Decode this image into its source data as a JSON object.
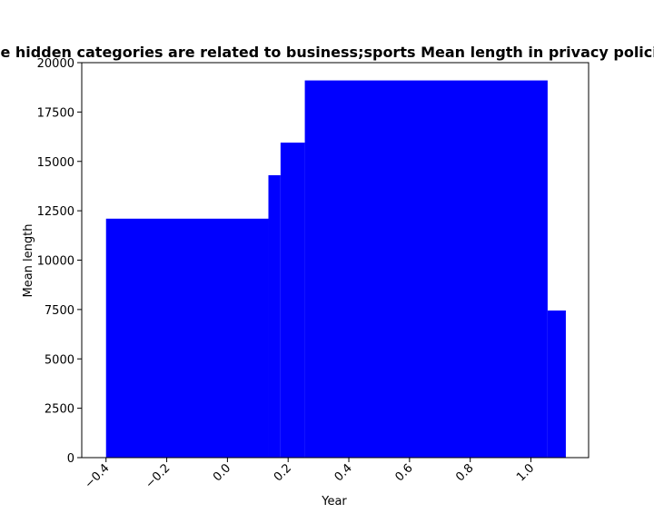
{
  "chart_data": {
    "type": "bar",
    "title": "Sites whose hidden categories are related to business;sports Mean length in privacy policies by Year",
    "xlabel": "Year",
    "ylabel": "Mean length",
    "xlim": [
      -0.48,
      1.19
    ],
    "ylim": [
      0,
      20000
    ],
    "x_ticks": [
      -0.4,
      -0.2,
      0.0,
      0.2,
      0.4,
      0.6,
      0.8,
      1.0
    ],
    "x_tick_labels": [
      "−0.4",
      "−0.2",
      "0.0",
      "0.2",
      "0.4",
      "0.6",
      "0.8",
      "1.0"
    ],
    "y_ticks": [
      0,
      2500,
      5000,
      7500,
      10000,
      12500,
      15000,
      17500,
      20000
    ],
    "y_tick_labels": [
      "0",
      "2500",
      "5000",
      "7500",
      "10000",
      "12500",
      "15000",
      "17500",
      "20000"
    ],
    "bars": [
      {
        "x_start": -0.4,
        "x_end": 0.135,
        "value": 12100
      },
      {
        "x_start": 0.135,
        "x_end": 0.175,
        "value": 14300
      },
      {
        "x_start": 0.175,
        "x_end": 0.255,
        "value": 15950
      },
      {
        "x_start": 0.255,
        "x_end": 1.055,
        "value": 19100
      },
      {
        "x_start": 1.055,
        "x_end": 1.115,
        "value": 7450
      }
    ],
    "bar_color": "#0000ff",
    "grid": false,
    "legend": "none"
  }
}
